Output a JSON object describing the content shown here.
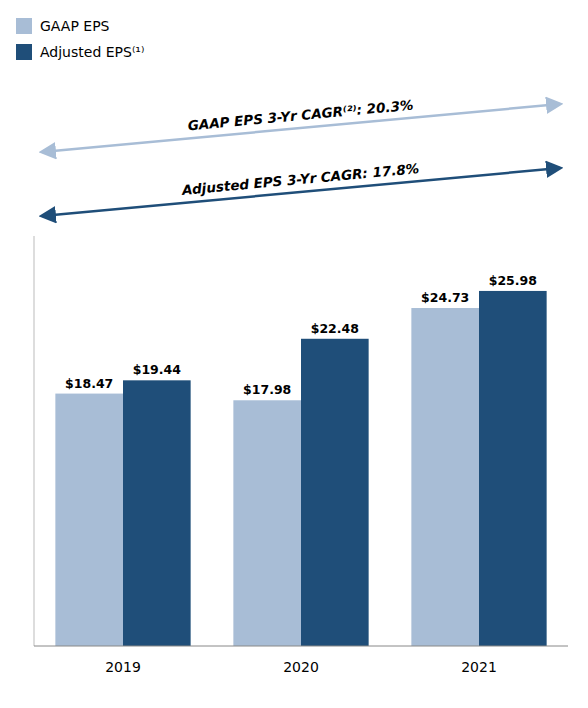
{
  "chart_data": {
    "type": "bar",
    "categories": [
      "2019",
      "2020",
      "2021"
    ],
    "series": [
      {
        "name": "GAAP EPS",
        "color": "#a8bdd6",
        "values": [
          18.47,
          17.98,
          24.73
        ],
        "value_labels": [
          "$18.47",
          "$17.98",
          "$24.73"
        ]
      },
      {
        "name": "Adjusted EPS⁽¹⁾",
        "color": "#1f4e79",
        "values": [
          19.44,
          22.48,
          25.98
        ],
        "value_labels": [
          "$19.44",
          "$22.48",
          "$25.98"
        ]
      }
    ],
    "annotations": [
      "GAAP EPS 3-Yr CAGR⁽²⁾: 20.3%",
      "Adjusted EPS 3-Yr CAGR: 17.8%"
    ],
    "ylim": [
      0,
      30
    ],
    "data_labels": true,
    "tick_labels": "x",
    "legend": "upper left",
    "grid": false
  }
}
